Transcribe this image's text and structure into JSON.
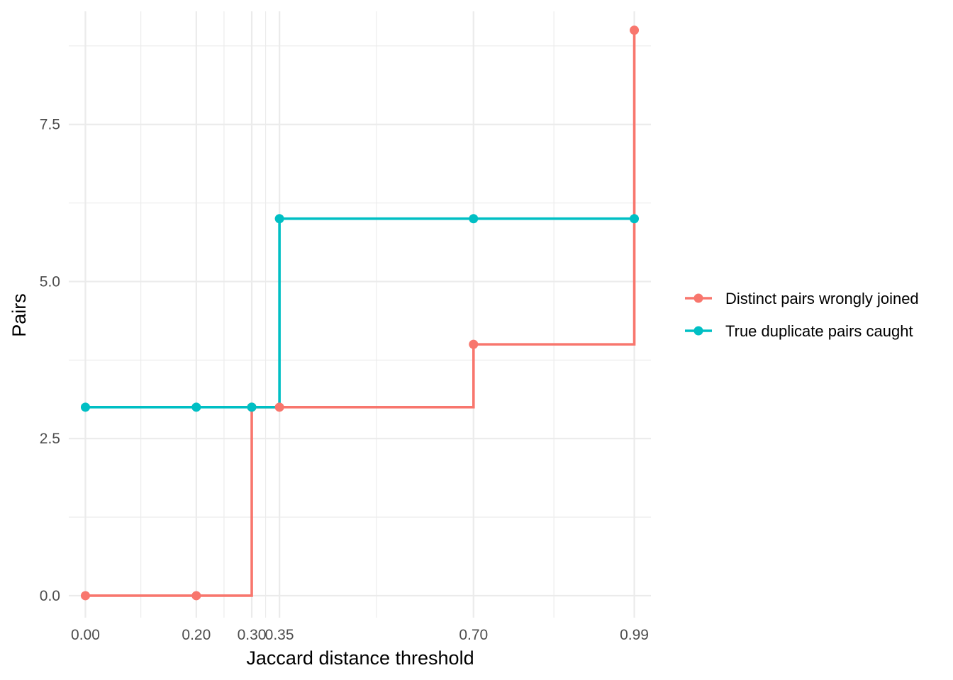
{
  "chart_data": {
    "type": "line",
    "step": true,
    "title": "",
    "xlabel": "Jaccard distance threshold",
    "ylabel": "Pairs",
    "xlim": [
      -0.03,
      1.02
    ],
    "ylim": [
      -0.35,
      9.3
    ],
    "x_breaks": [
      0.0,
      0.2,
      0.3,
      0.35,
      0.7,
      0.99
    ],
    "x_tick_labels": [
      "0.00",
      "0.20",
      "0.30",
      "0.35",
      "0.70",
      "0.99"
    ],
    "x_minor_breaks": [
      0.1,
      0.25,
      0.325,
      0.525,
      0.845
    ],
    "y_breaks": [
      0.0,
      2.5,
      5.0,
      7.5
    ],
    "y_tick_labels": [
      "0.0",
      "2.5",
      "5.0",
      "7.5"
    ],
    "y_minor_breaks": [
      1.25,
      3.75,
      6.25,
      8.75
    ],
    "grid": true,
    "legend_position": "right",
    "series": [
      {
        "name": "Distinct pairs wrongly joined",
        "color": "#F8766D",
        "x": [
          0.0,
          0.2,
          0.3,
          0.35,
          0.7,
          0.99
        ],
        "y": [
          0,
          0,
          3,
          3,
          4,
          9
        ]
      },
      {
        "name": "True duplicate pairs caught",
        "color": "#00BFC4",
        "x": [
          0.0,
          0.2,
          0.3,
          0.35,
          0.7,
          0.99
        ],
        "y": [
          3,
          3,
          3,
          6,
          6,
          6
        ]
      }
    ]
  }
}
